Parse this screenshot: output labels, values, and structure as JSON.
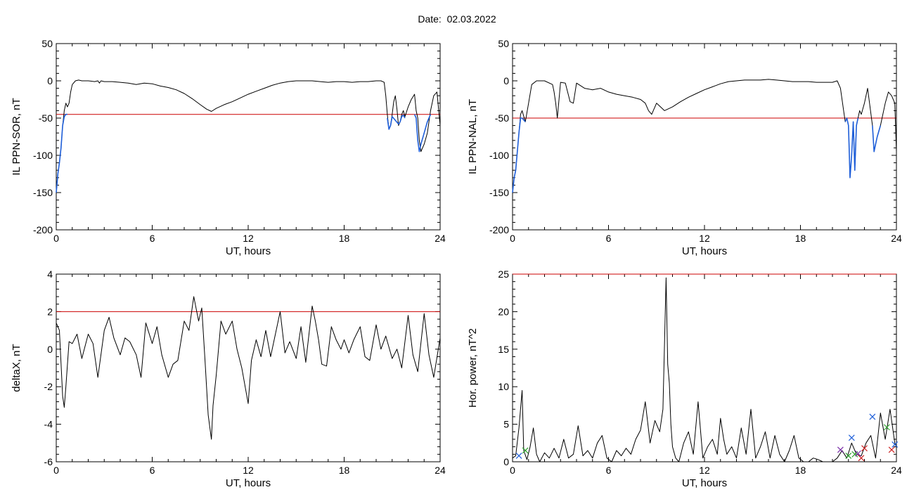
{
  "page": {
    "title": "Date:  02.03.2022"
  },
  "chart_data": [
    {
      "type": "line",
      "ylabel": "IL PPN-SOR, nT",
      "xlabel": "UT, hours",
      "xlim": [
        0,
        24
      ],
      "ylim": [
        -200,
        50
      ],
      "xticks": [
        0,
        6,
        12,
        18,
        24
      ],
      "yticks": [
        50,
        0,
        -50,
        -100,
        -150,
        -200
      ],
      "threshold": {
        "value": -45,
        "color": "#cc0000"
      },
      "series": [
        {
          "color": "#000000",
          "x": [
            0.0,
            0.1,
            0.2,
            0.3,
            0.4,
            0.5,
            0.6,
            0.7,
            0.8,
            0.9,
            1.0,
            1.2,
            1.4,
            1.6,
            2.0,
            2.4,
            2.6,
            2.7,
            2.8,
            3.0,
            3.5,
            4.0,
            4.5,
            5.0,
            5.5,
            6.0,
            6.5,
            7.0,
            7.5,
            8.0,
            8.5,
            9.0,
            9.4,
            9.7,
            10.0,
            10.5,
            11.0,
            11.5,
            12.0,
            12.5,
            13.0,
            13.5,
            14.0,
            14.5,
            15.0,
            15.5,
            16.0,
            16.5,
            17.0,
            17.5,
            18.0,
            18.5,
            19.0,
            19.5,
            20.0,
            20.3,
            20.5,
            20.6,
            20.7,
            20.8,
            20.9,
            21.0,
            21.1,
            21.2,
            21.3,
            21.4,
            21.5,
            21.6,
            21.7,
            21.8,
            22.0,
            22.2,
            22.4,
            22.5,
            22.6,
            22.7,
            22.8,
            23.0,
            23.2,
            23.4,
            23.6,
            23.8,
            24.0
          ],
          "y": [
            -150,
            -125,
            -110,
            -90,
            -60,
            -40,
            -30,
            -35,
            -30,
            -15,
            -5,
            0,
            1,
            0,
            0,
            -1,
            0,
            -3,
            0,
            -1,
            -1,
            -2,
            -3,
            -5,
            -3,
            -4,
            -7,
            -9,
            -12,
            -17,
            -24,
            -32,
            -38,
            -41,
            -37,
            -32,
            -28,
            -23,
            -18,
            -14,
            -10,
            -6,
            -3,
            -1,
            0,
            0,
            0,
            -1,
            -2,
            -1,
            -1,
            -2,
            -1,
            -1,
            0,
            0,
            -2,
            -20,
            -45,
            -65,
            -60,
            -45,
            -28,
            -20,
            -38,
            -60,
            -55,
            -45,
            -40,
            -48,
            -35,
            -25,
            -18,
            -40,
            -50,
            -80,
            -95,
            -85,
            -70,
            -40,
            -20,
            -15,
            -60
          ]
        },
        {
          "color": "#1f5fd9",
          "x": [
            0.0,
            0.1,
            0.2,
            0.3,
            0.4,
            0.5,
            0.6,
            0.7,
            20.7,
            20.8,
            20.9,
            21.0,
            21.4,
            21.5,
            21.6,
            21.7,
            21.8,
            22.4,
            22.5,
            22.6,
            22.7,
            22.8,
            23.0,
            23.2,
            23.4
          ],
          "y": [
            -150,
            -125,
            -110,
            -90,
            -60,
            -48,
            -45,
            -45,
            -50,
            -65,
            -60,
            -48,
            -58,
            -55,
            -48,
            -46,
            -50,
            -45,
            -50,
            -80,
            -95,
            -85,
            -70,
            -55,
            -45
          ]
        }
      ]
    },
    {
      "type": "line",
      "ylabel": "IL PPN-NAL, nT",
      "xlabel": "UT, hours",
      "xlim": [
        0,
        24
      ],
      "ylim": [
        -200,
        50
      ],
      "xticks": [
        0,
        6,
        12,
        18,
        24
      ],
      "yticks": [
        50,
        0,
        -50,
        -100,
        -150,
        -200
      ],
      "threshold": {
        "value": -50,
        "color": "#cc0000"
      },
      "series": [
        {
          "color": "#000000",
          "x": [
            0.0,
            0.1,
            0.2,
            0.3,
            0.4,
            0.5,
            0.6,
            0.8,
            1.0,
            1.2,
            1.5,
            2.0,
            2.5,
            2.6,
            2.7,
            2.8,
            3.0,
            3.3,
            3.6,
            3.8,
            4.0,
            4.5,
            5.0,
            5.5,
            6.0,
            6.5,
            7.0,
            7.5,
            8.0,
            8.3,
            8.5,
            8.7,
            9.0,
            9.5,
            10.0,
            10.5,
            11.0,
            11.5,
            12.0,
            12.5,
            13.0,
            13.5,
            14.0,
            14.5,
            15.0,
            15.5,
            16.0,
            16.5,
            17.0,
            17.5,
            18.0,
            18.5,
            19.0,
            19.5,
            20.0,
            20.3,
            20.5,
            20.7,
            20.8,
            20.9,
            21.0,
            21.1,
            21.2,
            21.3,
            21.4,
            21.5,
            21.6,
            21.7,
            21.8,
            22.0,
            22.2,
            22.5,
            22.6,
            22.7,
            22.8,
            23.0,
            23.3,
            23.5,
            23.7,
            23.9,
            24.0
          ],
          "y": [
            -150,
            -130,
            -120,
            -95,
            -70,
            -45,
            -40,
            -55,
            -30,
            -5,
            0,
            0,
            -5,
            -15,
            -30,
            -50,
            -2,
            -3,
            -28,
            -30,
            -3,
            -10,
            -12,
            -10,
            -15,
            -18,
            -20,
            -22,
            -25,
            -30,
            -40,
            -45,
            -30,
            -40,
            -35,
            -28,
            -22,
            -17,
            -12,
            -8,
            -4,
            -1,
            0,
            1,
            1,
            1,
            2,
            1,
            0,
            -1,
            -1,
            -1,
            -2,
            -2,
            -2,
            0,
            -10,
            -40,
            -55,
            -50,
            -60,
            -130,
            -100,
            -55,
            -120,
            -60,
            -50,
            -40,
            -45,
            -30,
            -10,
            -60,
            -95,
            -85,
            -75,
            -60,
            -30,
            -15,
            -20,
            -30,
            -95
          ]
        },
        {
          "color": "#1f5fd9",
          "x": [
            0.0,
            0.1,
            0.2,
            0.3,
            0.4,
            0.5,
            0.6,
            0.8,
            20.8,
            20.9,
            21.0,
            21.1,
            21.2,
            21.3,
            21.4,
            21.5,
            21.6,
            22.5,
            22.6,
            22.7,
            22.8,
            23.0
          ],
          "y": [
            -150,
            -130,
            -120,
            -95,
            -70,
            -50,
            -50,
            -55,
            -55,
            -50,
            -60,
            -130,
            -100,
            -55,
            -120,
            -60,
            -50,
            -60,
            -95,
            -85,
            -75,
            -60
          ]
        }
      ]
    },
    {
      "type": "line",
      "ylabel": "deltaX, nT",
      "xlabel": "UT, hours",
      "xlim": [
        0,
        24
      ],
      "ylim": [
        -6,
        4
      ],
      "xticks": [
        0,
        6,
        12,
        18,
        24
      ],
      "yticks": [
        4,
        2,
        0,
        -2,
        -4,
        -6
      ],
      "threshold": {
        "value": 2,
        "color": "#cc0000"
      },
      "series": [
        {
          "color": "#000000",
          "x": [
            0.0,
            0.2,
            0.4,
            0.5,
            0.6,
            0.8,
            1.0,
            1.3,
            1.6,
            2.0,
            2.3,
            2.6,
            3.0,
            3.3,
            3.6,
            4.0,
            4.3,
            4.6,
            5.0,
            5.3,
            5.6,
            6.0,
            6.3,
            6.6,
            7.0,
            7.3,
            7.6,
            8.0,
            8.3,
            8.6,
            8.9,
            9.1,
            9.3,
            9.5,
            9.7,
            9.8,
            10.0,
            10.3,
            10.6,
            11.0,
            11.3,
            11.6,
            12.0,
            12.2,
            12.5,
            12.8,
            13.1,
            13.4,
            13.7,
            14.0,
            14.3,
            14.6,
            15.0,
            15.3,
            15.6,
            16.0,
            16.2,
            16.4,
            16.6,
            16.9,
            17.2,
            17.5,
            17.8,
            18.0,
            18.3,
            18.6,
            19.0,
            19.3,
            19.6,
            20.0,
            20.3,
            20.6,
            21.0,
            21.3,
            21.6,
            22.0,
            22.3,
            22.6,
            23.0,
            23.3,
            23.6,
            24.0
          ],
          "y": [
            1.4,
            1.0,
            -2.5,
            -3.1,
            -2.0,
            0.4,
            0.3,
            0.8,
            -0.5,
            0.8,
            0.3,
            -1.5,
            1.0,
            1.7,
            0.6,
            -0.3,
            0.6,
            0.4,
            -0.3,
            -1.5,
            1.4,
            0.3,
            1.2,
            -0.3,
            -1.5,
            -0.8,
            -0.6,
            1.5,
            1.0,
            2.8,
            1.5,
            2.2,
            -0.6,
            -3.5,
            -4.8,
            -3.0,
            -1.4,
            1.5,
            0.8,
            1.5,
            0.0,
            -1.0,
            -2.9,
            -0.6,
            0.5,
            -0.4,
            1.0,
            -0.4,
            0.8,
            2.0,
            -0.2,
            0.4,
            -0.5,
            1.2,
            -0.7,
            2.3,
            1.5,
            0.5,
            -0.8,
            -0.9,
            1.2,
            0.5,
            0.0,
            0.5,
            -0.2,
            0.5,
            1.2,
            -0.4,
            -0.6,
            1.3,
            0.0,
            0.7,
            -0.5,
            0.0,
            -1.0,
            1.8,
            -0.3,
            -1.2,
            1.9,
            -0.3,
            -1.5,
            0.6
          ]
        }
      ]
    },
    {
      "type": "line",
      "ylabel": "Hor. power, nT^2",
      "xlabel": "UT, hours",
      "xlim": [
        0,
        24
      ],
      "ylim": [
        0,
        25
      ],
      "xticks": [
        0,
        6,
        12,
        18,
        24
      ],
      "yticks": [
        25,
        20,
        15,
        10,
        5,
        0
      ],
      "threshold": {
        "value": 25,
        "color": "#cc0000"
      },
      "series": [
        {
          "color": "#000000",
          "x": [
            0.0,
            0.2,
            0.4,
            0.6,
            0.7,
            0.9,
            1.1,
            1.3,
            1.5,
            1.7,
            2.0,
            2.3,
            2.6,
            2.9,
            3.2,
            3.5,
            3.8,
            4.1,
            4.4,
            4.7,
            5.0,
            5.3,
            5.6,
            5.9,
            6.2,
            6.5,
            6.8,
            7.1,
            7.4,
            7.7,
            8.0,
            8.3,
            8.6,
            8.9,
            9.2,
            9.4,
            9.6,
            9.7,
            9.8,
            9.9,
            10.0,
            10.2,
            10.4,
            10.7,
            11.0,
            11.3,
            11.6,
            11.9,
            12.2,
            12.5,
            12.8,
            13.0,
            13.2,
            13.4,
            13.7,
            14.0,
            14.3,
            14.6,
            14.9,
            15.2,
            15.5,
            15.8,
            16.1,
            16.4,
            16.7,
            17.0,
            17.3,
            17.6,
            17.9,
            18.2,
            18.5,
            18.8,
            19.1,
            19.4,
            19.7,
            20.0,
            20.3,
            20.6,
            20.9,
            21.2,
            21.5,
            21.8,
            22.1,
            22.4,
            22.7,
            23.0,
            23.3,
            23.6,
            23.9,
            24.0
          ],
          "y": [
            0.5,
            0.8,
            4.5,
            9.5,
            1.5,
            0.3,
            2.0,
            4.5,
            1.0,
            0.0,
            1.2,
            0.5,
            1.8,
            0.5,
            3.0,
            0.5,
            1.0,
            4.8,
            0.8,
            1.5,
            0.5,
            2.5,
            3.5,
            0.5,
            0.0,
            1.5,
            0.8,
            1.8,
            1.0,
            3.0,
            4.2,
            8.0,
            2.5,
            5.5,
            4.0,
            7.0,
            24.5,
            13.0,
            10.5,
            5.0,
            2.0,
            0.5,
            0.0,
            2.5,
            4.0,
            1.0,
            8.0,
            0.5,
            2.0,
            3.0,
            1.0,
            5.8,
            3.0,
            1.0,
            2.0,
            0.5,
            4.5,
            1.0,
            7.0,
            0.5,
            2.0,
            4.0,
            0.5,
            3.5,
            1.0,
            0.0,
            1.5,
            3.5,
            0.5,
            0.0,
            0.0,
            0.5,
            0.3,
            0.0,
            0.0,
            0.0,
            0.5,
            1.5,
            0.5,
            2.5,
            1.0,
            0.8,
            2.5,
            3.5,
            0.5,
            6.5,
            3.0,
            7.0,
            2.5,
            2.0
          ]
        }
      ],
      "markers": [
        {
          "color": "#1f5fd9",
          "x": [
            0.4,
            21.2,
            22.5,
            23.9
          ],
          "y": [
            0.8,
            3.2,
            6.0,
            2.3
          ]
        },
        {
          "color": "#2ca02c",
          "x": [
            0.8,
            21.0,
            21.4,
            23.4
          ],
          "y": [
            1.5,
            0.8,
            1.0,
            4.6
          ]
        },
        {
          "color": "#7b2fa8",
          "x": [
            20.5,
            21.6
          ],
          "y": [
            1.6,
            1.1
          ]
        },
        {
          "color": "#cc2222",
          "x": [
            21.8,
            22.0,
            23.7
          ],
          "y": [
            0.5,
            1.8,
            1.6
          ]
        }
      ]
    }
  ]
}
